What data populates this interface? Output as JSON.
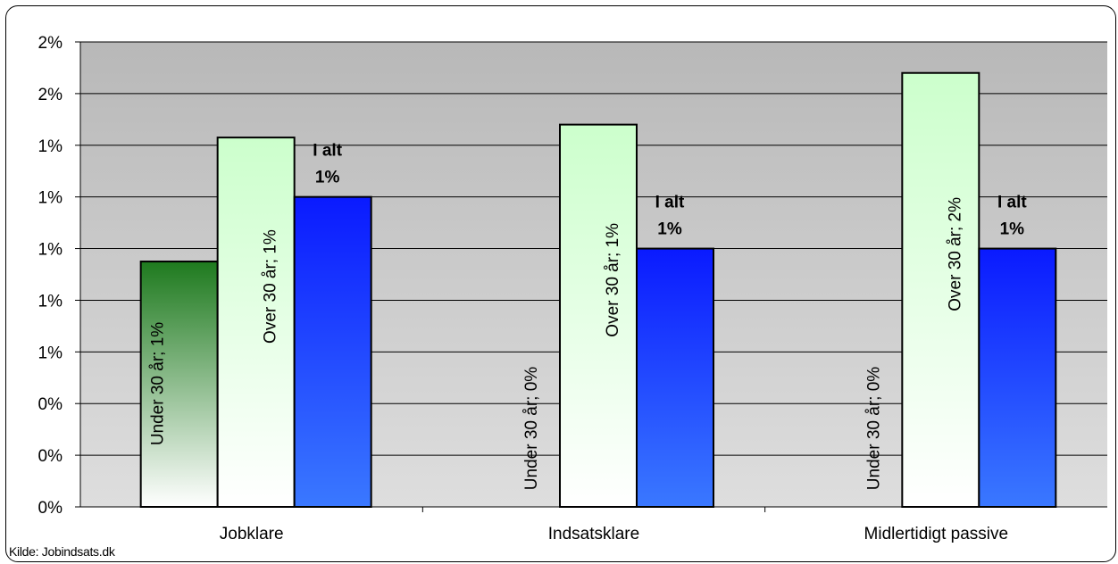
{
  "chart_data": {
    "type": "bar",
    "categories": [
      "Jobklare",
      "Indsatsklare",
      "Midlertidigt passive"
    ],
    "series": [
      {
        "name": "Under 30 år",
        "values": [
          0.95,
          0.0,
          0.0
        ],
        "color": "#1e7a1e"
      },
      {
        "name": "Over 30 år",
        "values": [
          1.43,
          1.48,
          1.68
        ],
        "color": "#ccffcc"
      },
      {
        "name": "I alt",
        "values": [
          1.2,
          1.0,
          1.0
        ],
        "color": "#0a1aff"
      }
    ],
    "data_labels": [
      [
        "Under 30 år; 1%",
        "Over 30 år; 1%",
        "I alt 1%"
      ],
      [
        "Under 30 år; 0%",
        "Over 30 år; 1%",
        "I alt 1%"
      ],
      [
        "Under 30 år; 0%",
        "Over 30 år; 2%",
        "I alt 1%"
      ]
    ],
    "y_tick_labels": [
      "0%",
      "0%",
      "0%",
      "1%",
      "1%",
      "1%",
      "1%",
      "1%",
      "2%",
      "2%"
    ],
    "ylim": [
      0,
      1.8
    ],
    "ystep": 0.2,
    "grid": true,
    "plot_background": "#c0c0c0",
    "source": "Kilde: Jobindsats.dk"
  }
}
